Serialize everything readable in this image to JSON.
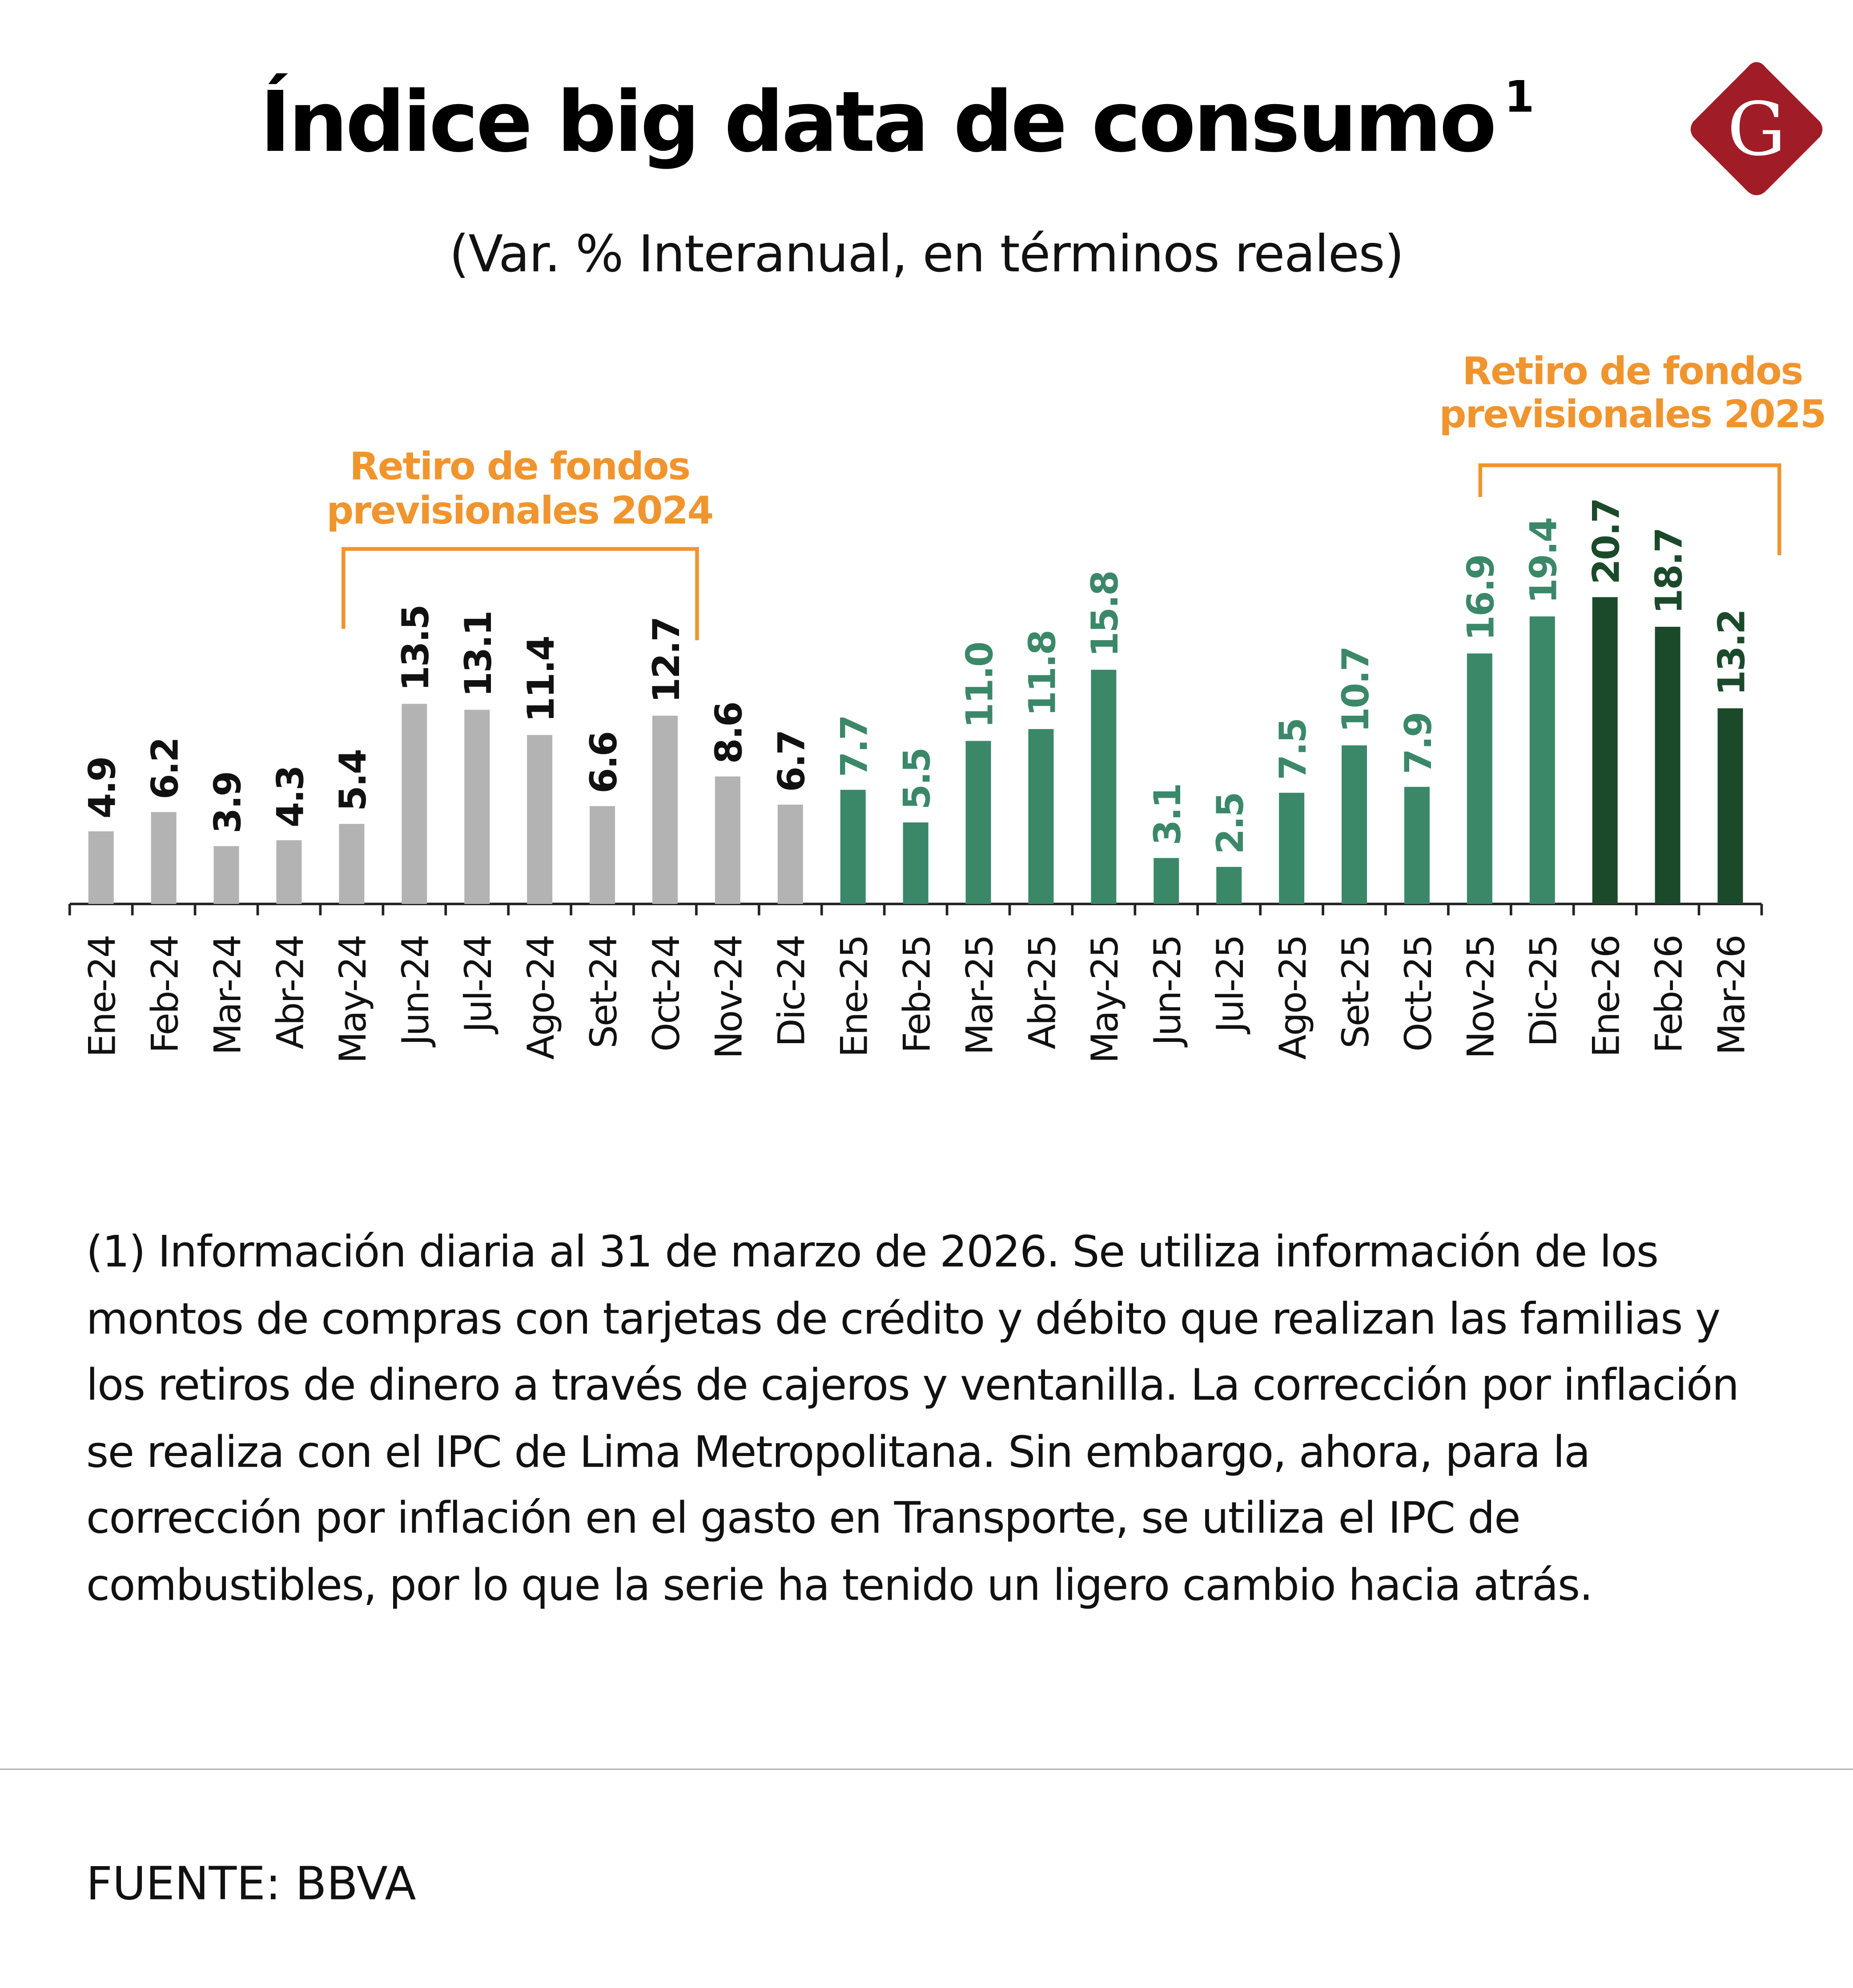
{
  "title": "Índice big data de consumo",
  "title_superscript": "1",
  "subtitle": "(Var. % Interanual, en términos reales)",
  "logo": {
    "letter": "G",
    "color": "#a01c26"
  },
  "annotations": [
    {
      "line1": "Retiro de fondos",
      "line2": "previsionales 2024",
      "from": "May-24",
      "to": "Oct-24"
    },
    {
      "line1": "Retiro de fondos",
      "line2": "previsionales 2025",
      "from": "Nov-25",
      "to": "Mar-26"
    }
  ],
  "colors": {
    "gray": "#b3b3b3",
    "green": "#3b8869",
    "dark_green": "#1b4a2b",
    "orange": "#f0952e",
    "axis": "#222222"
  },
  "chart_data": {
    "type": "bar",
    "title": "Índice big data de consumo",
    "subtitle": "(Var. % Interanual, en términos reales)",
    "categories": [
      "Ene-24",
      "Feb-24",
      "Mar-24",
      "Abr-24",
      "May-24",
      "Jun-24",
      "Jul-24",
      "Ago-24",
      "Set-24",
      "Oct-24",
      "Nov-24",
      "Dic-24",
      "Ene-25",
      "Feb-25",
      "Mar-25",
      "Abr-25",
      "May-25",
      "Jun-25",
      "Jul-25",
      "Ago-25",
      "Set-25",
      "Oct-25",
      "Nov-25",
      "Dic-25",
      "Ene-26",
      "Feb-26",
      "Mar-26"
    ],
    "values": [
      4.9,
      6.2,
      3.9,
      4.3,
      5.4,
      13.5,
      13.1,
      11.4,
      6.6,
      12.7,
      8.6,
      6.7,
      7.7,
      5.5,
      11.0,
      11.8,
      15.8,
      3.1,
      2.5,
      7.5,
      10.7,
      7.9,
      16.9,
      19.4,
      20.7,
      18.7,
      13.2
    ],
    "labels": [
      "4.9",
      "6.2",
      "3.9",
      "4.3",
      "5.4",
      "13.5",
      "13.1",
      "11.4",
      "6.6",
      "12.7",
      "8.6",
      "6.7",
      "7.7",
      "5.5",
      "11.0",
      "11.8",
      "15.8",
      "3.1",
      "2.5",
      "7.5",
      "10.7",
      "7.9",
      "16.9",
      "19.4",
      "20.7",
      "18.7",
      "13.2"
    ],
    "bar_color_groups": [
      "gray",
      "gray",
      "gray",
      "gray",
      "gray",
      "gray",
      "gray",
      "gray",
      "gray",
      "gray",
      "gray",
      "gray",
      "green",
      "green",
      "green",
      "green",
      "green",
      "green",
      "green",
      "green",
      "green",
      "green",
      "green",
      "green",
      "dark_green",
      "dark_green",
      "dark_green"
    ],
    "xlabel": "",
    "ylabel": "",
    "ylim": [
      0,
      20.7
    ],
    "grid": false,
    "legend": "none"
  },
  "footnote": "(1) Información diaria al 31 de marzo de 2026. Se utiliza información de los montos de compras con tarjetas de crédito y débito que realizan las familias y los retiros de dinero a través de cajeros y ventanilla. La corrección por inflación se realiza con el IPC de Lima Metropolitana. Sin embargo, ahora, para la corrección por inflación en el gasto en Transporte, se utiliza el IPC de combustibles, por lo que la serie ha tenido un ligero cambio hacia atrás.",
  "source": "FUENTE: BBVA"
}
